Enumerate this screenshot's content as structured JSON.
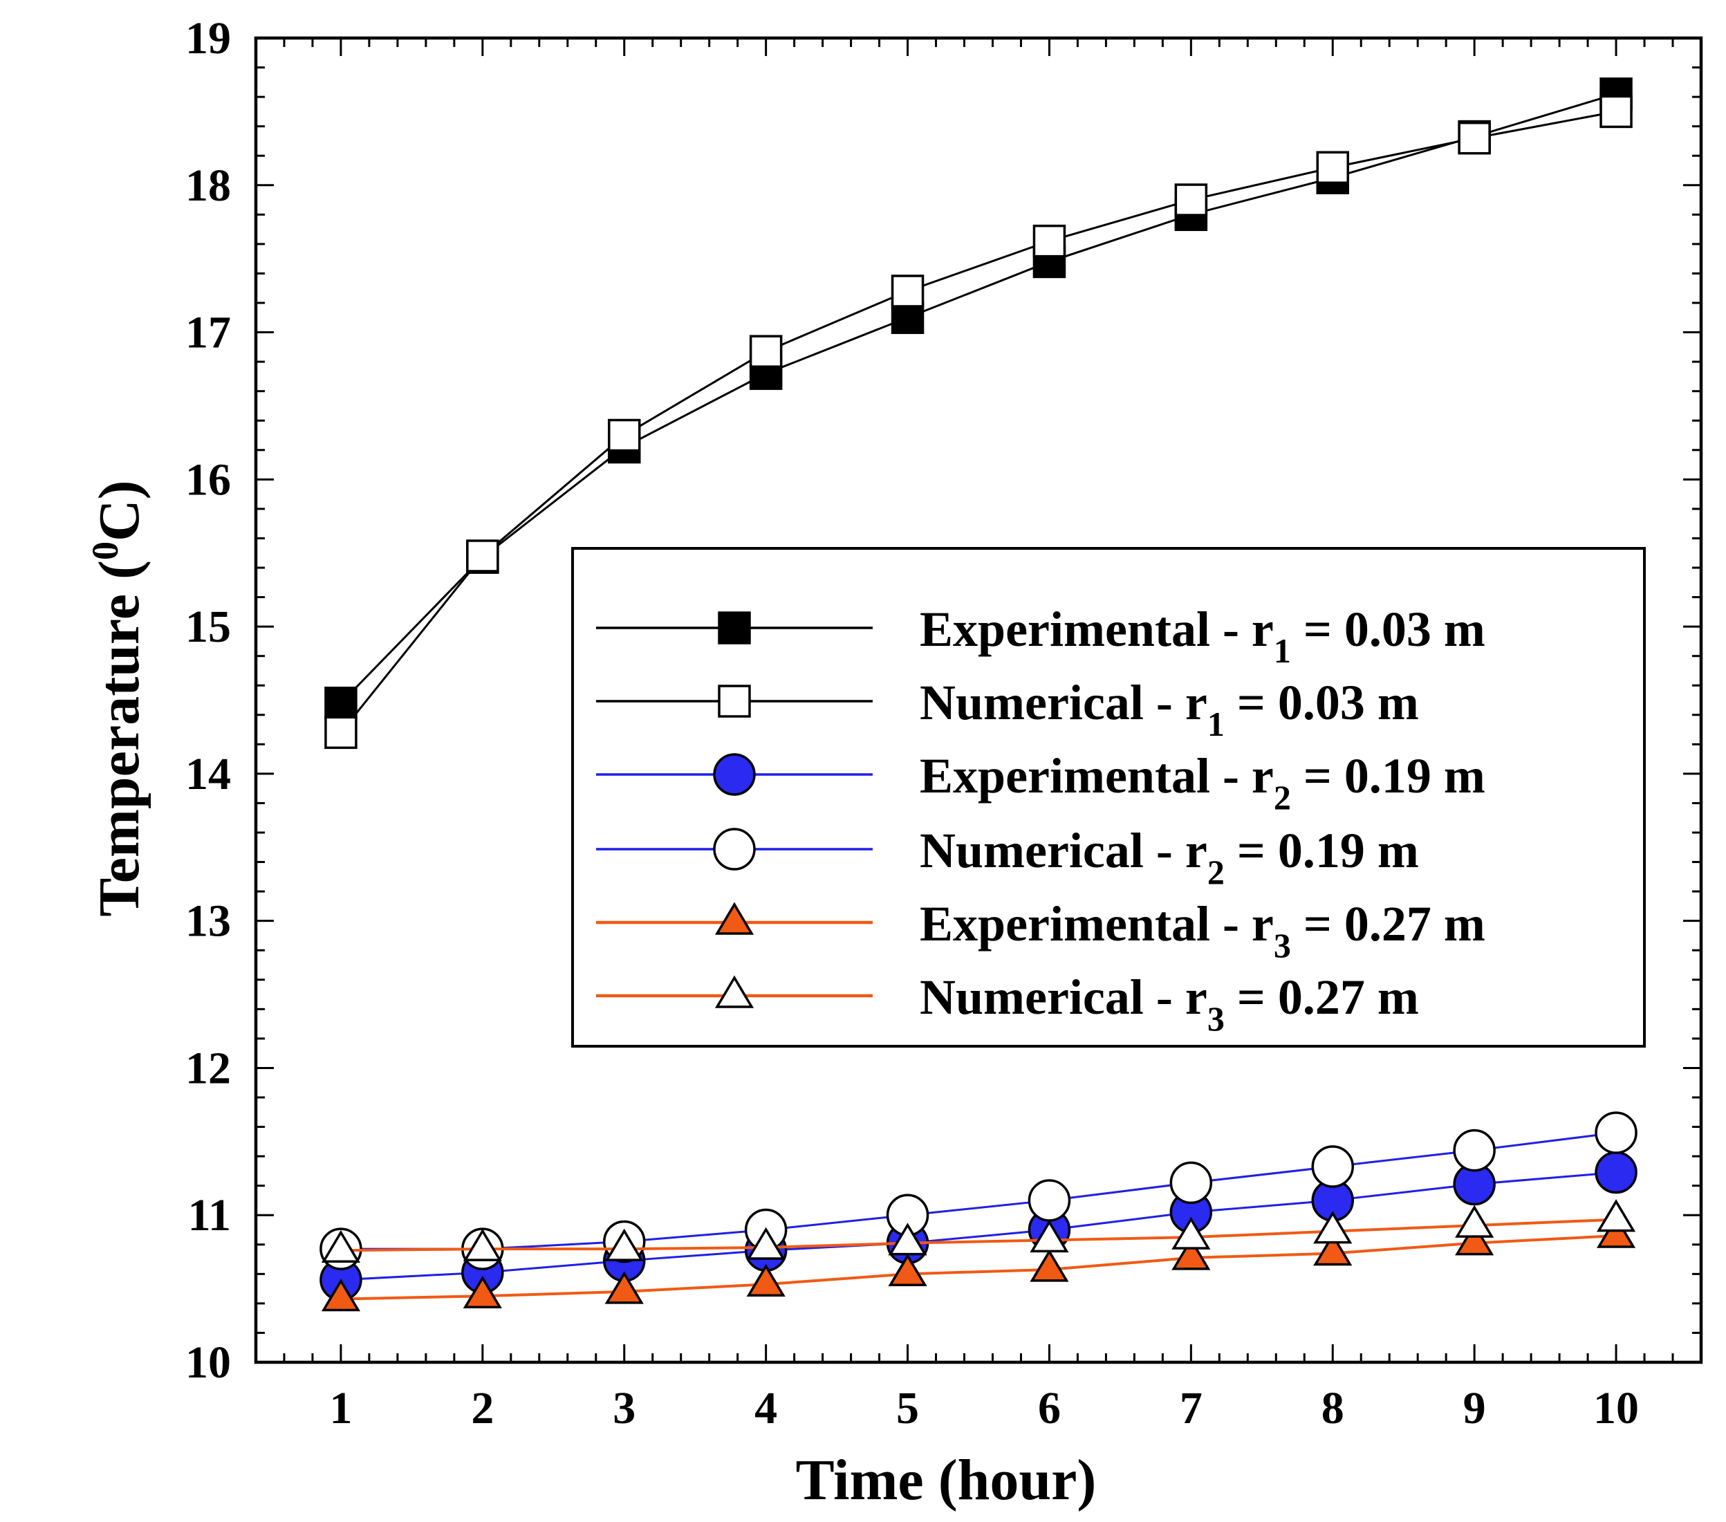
{
  "chart_data": {
    "type": "line",
    "title": "",
    "xlabel": "Time (hour)",
    "ylabel": {
      "main": "Temperature (",
      "sup": "0",
      "tail": "C)"
    },
    "xlim": [
      0.4,
      10.6
    ],
    "ylim": [
      10,
      19
    ],
    "x": [
      1,
      2,
      3,
      4,
      5,
      6,
      7,
      8,
      9,
      10
    ],
    "x_ticks": [
      "1",
      "2",
      "3",
      "4",
      "5",
      "6",
      "7",
      "8",
      "9",
      "10"
    ],
    "y_ticks": [
      "10",
      "11",
      "12",
      "13",
      "14",
      "15",
      "16",
      "17",
      "18",
      "19"
    ],
    "legend_position": "right-middle",
    "series": [
      {
        "name": "Experimental - r1 = 0.03 m",
        "label_main": "Experimental - r",
        "label_sub": "1",
        "label_tail": " = 0.03 m",
        "marker": "square",
        "filled": true,
        "line_color": "#000000",
        "marker_fill": "#000000",
        "values": [
          14.48,
          15.47,
          16.22,
          16.72,
          17.1,
          17.48,
          17.8,
          18.05,
          18.33,
          18.62
        ]
      },
      {
        "name": "Numerical - r1 = 0.03 m",
        "label_main": "Numerical - r",
        "label_sub": "1",
        "label_tail": " = 0.03 m",
        "marker": "square",
        "filled": false,
        "line_color": "#000000",
        "marker_fill": "#ffffff",
        "values": [
          14.28,
          15.48,
          16.3,
          16.87,
          17.28,
          17.62,
          17.9,
          18.12,
          18.32,
          18.5
        ]
      },
      {
        "name": "Experimental - r2 = 0.19 m",
        "label_main": "Experimental - r",
        "label_sub": "2",
        "label_tail": " = 0.19 m",
        "marker": "circle",
        "filled": true,
        "line_color": "#1f1fe6",
        "marker_fill": "#2a2af0",
        "values": [
          10.56,
          10.61,
          10.69,
          10.76,
          10.81,
          10.9,
          11.02,
          11.1,
          11.21,
          11.29
        ]
      },
      {
        "name": "Numerical - r2 = 0.19 m",
        "label_main": "Numerical - r",
        "label_sub": "2",
        "label_tail": " = 0.19 m",
        "marker": "circle",
        "filled": false,
        "line_color": "#1f1fe6",
        "marker_fill": "#ffffff",
        "values": [
          10.77,
          10.77,
          10.82,
          10.9,
          11.0,
          11.1,
          11.22,
          11.33,
          11.44,
          11.56
        ]
      },
      {
        "name": "Experimental - r3 = 0.27 m",
        "label_main": "Experimental - r",
        "label_sub": "3",
        "label_tail": " = 0.27 m",
        "marker": "triangle",
        "filled": true,
        "line_color": "#f05a14",
        "marker_fill": "#f05a14",
        "values": [
          10.43,
          10.45,
          10.48,
          10.53,
          10.6,
          10.63,
          10.71,
          10.74,
          10.81,
          10.86
        ]
      },
      {
        "name": "Numerical - r3 = 0.27 m",
        "label_main": "Numerical - r",
        "label_sub": "3",
        "label_tail": " = 0.27 m",
        "marker": "triangle",
        "filled": false,
        "line_color": "#f05a14",
        "marker_fill": "#ffffff",
        "values": [
          10.76,
          10.77,
          10.77,
          10.78,
          10.81,
          10.83,
          10.85,
          10.89,
          10.93,
          10.97
        ]
      }
    ]
  }
}
